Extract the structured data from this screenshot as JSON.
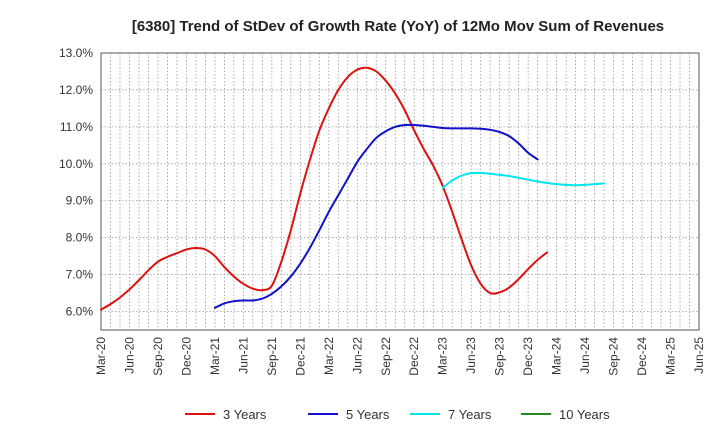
{
  "chart_data": {
    "type": "line",
    "title": "[6380]  Trend of StDev of Growth Rate (YoY) of 12Mo Mov Sum of Revenues",
    "xlabel": "",
    "ylabel": "",
    "ylim": [
      5.5,
      13.0
    ],
    "y_ticks": [
      6.0,
      7.0,
      8.0,
      9.0,
      10.0,
      11.0,
      12.0,
      13.0
    ],
    "y_tick_labels": [
      "6.0%",
      "7.0%",
      "8.0%",
      "9.0%",
      "10.0%",
      "11.0%",
      "12.0%",
      "13.0%"
    ],
    "x_tick_labels": [
      "Mar-20",
      "Jun-20",
      "Sep-20",
      "Dec-20",
      "Mar-21",
      "Jun-21",
      "Sep-21",
      "Dec-21",
      "Mar-22",
      "Jun-22",
      "Sep-22",
      "Dec-22",
      "Mar-23",
      "Jun-23",
      "Sep-23",
      "Dec-23",
      "Mar-24",
      "Jun-24",
      "Sep-24",
      "Dec-24",
      "Mar-25",
      "Jun-25"
    ],
    "grid": true,
    "legend_position": "bottom",
    "series": [
      {
        "name": "3 Years",
        "color": "#dd1111",
        "start_index": 0,
        "values": [
          6.05,
          6.2,
          6.38,
          6.6,
          6.85,
          7.12,
          7.35,
          7.48,
          7.58,
          7.68,
          7.72,
          7.68,
          7.5,
          7.2,
          6.95,
          6.75,
          6.62,
          6.58,
          6.7,
          7.35,
          8.2,
          9.2,
          10.1,
          10.9,
          11.5,
          12.0,
          12.35,
          12.55,
          12.6,
          12.5,
          12.25,
          11.9,
          11.45,
          10.9,
          10.4,
          9.95,
          9.4,
          8.7,
          7.95,
          7.25,
          6.75,
          6.5,
          6.52,
          6.65,
          6.88,
          7.15,
          7.4,
          7.6
        ]
      },
      {
        "name": "5 Years",
        "color": "#1111cc",
        "start_index": 12,
        "values": [
          6.1,
          6.22,
          6.28,
          6.3,
          6.3,
          6.35,
          6.48,
          6.68,
          6.95,
          7.3,
          7.72,
          8.2,
          8.7,
          9.15,
          9.6,
          10.05,
          10.4,
          10.7,
          10.88,
          11.0,
          11.05,
          11.05,
          11.03,
          11.0,
          10.97,
          10.96,
          10.96,
          10.96,
          10.95,
          10.92,
          10.86,
          10.75,
          10.55,
          10.3,
          10.12
        ]
      },
      {
        "name": "7 Years",
        "color": "#00e5ee",
        "start_index": 36,
        "values": [
          9.35,
          9.55,
          9.68,
          9.75,
          9.75,
          9.73,
          9.7,
          9.67,
          9.62,
          9.57,
          9.52,
          9.48,
          9.45,
          9.43,
          9.42,
          9.43,
          9.45,
          9.47
        ]
      },
      {
        "name": "10 Years",
        "color": "#228b22",
        "start_index": 0,
        "values": []
      }
    ]
  }
}
